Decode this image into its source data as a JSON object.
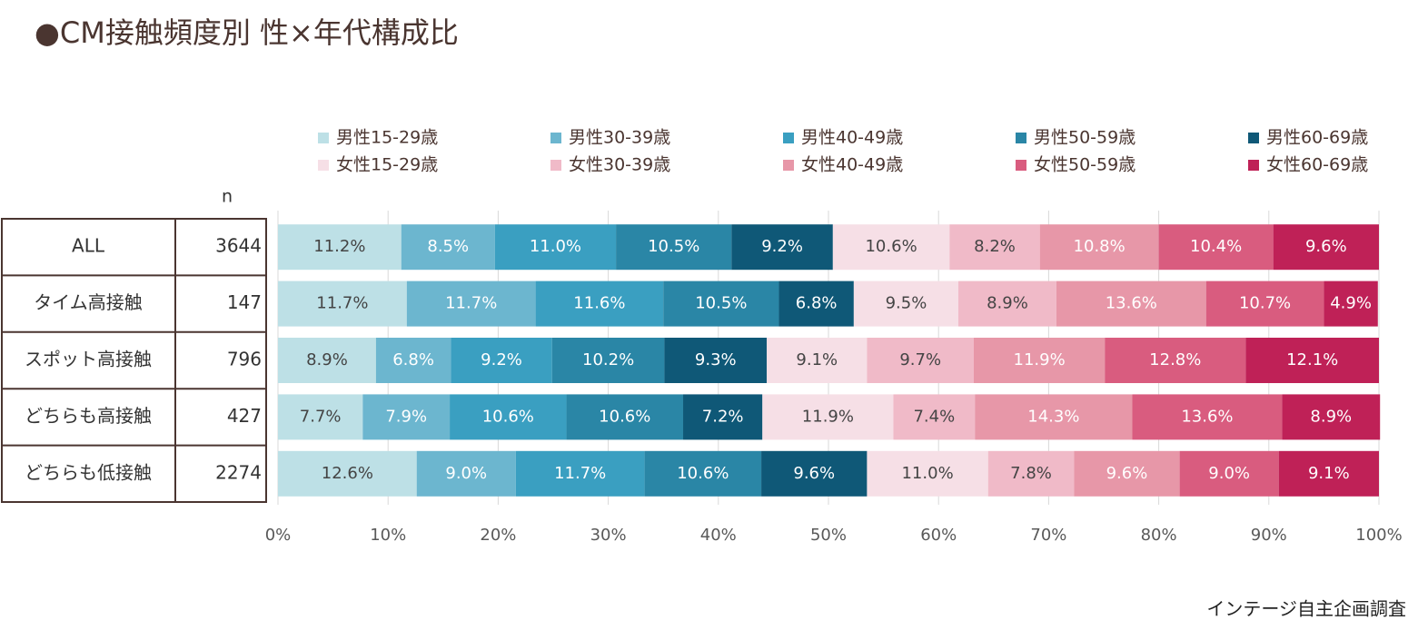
{
  "chart_data": {
    "type": "stacked-bar-100",
    "title": "●CM接触頻度別 性×年代構成比",
    "source": "インテージ自主企画調査",
    "n_label": "n",
    "categories": [
      "ALL",
      "タイム高接触",
      "スポット高接触",
      "どちらも高接触",
      "どちらも低接触"
    ],
    "n_values": [
      3644,
      147,
      796,
      427,
      2274
    ],
    "xlim": [
      0,
      100
    ],
    "xticks": [
      {
        "value": 0,
        "label": "0%"
      },
      {
        "value": 10,
        "label": "10%"
      },
      {
        "value": 20,
        "label": "20%"
      },
      {
        "value": 30,
        "label": "30%"
      },
      {
        "value": 40,
        "label": "40%"
      },
      {
        "value": 50,
        "label": "50%"
      },
      {
        "value": 60,
        "label": "60%"
      },
      {
        "value": 70,
        "label": "70%"
      },
      {
        "value": 80,
        "label": "80%"
      },
      {
        "value": 90,
        "label": "90%"
      },
      {
        "value": 100,
        "label": "100%"
      }
    ],
    "grid": true,
    "series": [
      {
        "name": "男性15-29歳",
        "color": "#bde0e6",
        "values": [
          11.2,
          11.7,
          8.9,
          7.7,
          12.6
        ],
        "value_labels": [
          "11.2%",
          "11.7%",
          "8.9%",
          "7.7%",
          "12.6%"
        ]
      },
      {
        "name": "男性30-39歳",
        "color": "#6cb6cf",
        "values": [
          8.5,
          11.7,
          6.8,
          7.9,
          9.0
        ],
        "value_labels": [
          "8.5%",
          "11.7%",
          "6.8%",
          "7.9%",
          "9.0%"
        ]
      },
      {
        "name": "男性40-49歳",
        "color": "#3a9fc1",
        "values": [
          11.0,
          11.6,
          9.2,
          10.6,
          11.7
        ],
        "value_labels": [
          "11.0%",
          "11.6%",
          "9.2%",
          "10.6%",
          "11.7%"
        ]
      },
      {
        "name": "男性50-59歳",
        "color": "#2a86a6",
        "values": [
          10.5,
          10.5,
          10.2,
          10.6,
          10.6
        ],
        "value_labels": [
          "10.5%",
          "10.5%",
          "10.2%",
          "10.6%",
          "10.6%"
        ]
      },
      {
        "name": "男性60-69歳",
        "color": "#0f5877",
        "values": [
          9.2,
          6.8,
          9.3,
          7.2,
          9.6
        ],
        "value_labels": [
          "9.2%",
          "6.8%",
          "9.3%",
          "7.2%",
          "9.6%"
        ]
      },
      {
        "name": "女性15-29歳",
        "color": "#f6dfe6",
        "values": [
          10.6,
          9.5,
          9.1,
          11.9,
          11.0
        ],
        "value_labels": [
          "10.6%",
          "9.5%",
          "9.1%",
          "11.9%",
          "11.0%"
        ]
      },
      {
        "name": "女性30-39歳",
        "color": "#f0bac8",
        "values": [
          8.2,
          8.9,
          9.7,
          7.4,
          7.8
        ],
        "value_labels": [
          "8.2%",
          "8.9%",
          "9.7%",
          "7.4%",
          "7.8%"
        ]
      },
      {
        "name": "女性40-49歳",
        "color": "#e797a8",
        "values": [
          10.8,
          13.6,
          11.9,
          14.3,
          9.6
        ],
        "value_labels": [
          "10.8%",
          "13.6%",
          "11.9%",
          "14.3%",
          "9.6%"
        ]
      },
      {
        "name": "女性50-59歳",
        "color": "#d95c7f",
        "values": [
          10.4,
          10.7,
          12.8,
          13.6,
          9.0
        ],
        "value_labels": [
          "10.4%",
          "10.7%",
          "12.8%",
          "13.6%",
          "9.0%"
        ]
      },
      {
        "name": "女性60-69歳",
        "color": "#bf2157",
        "values": [
          9.6,
          4.9,
          12.1,
          8.9,
          9.1
        ],
        "value_labels": [
          "9.6%",
          "4.9%",
          "12.1%",
          "8.9%",
          "9.1%"
        ]
      }
    ]
  }
}
